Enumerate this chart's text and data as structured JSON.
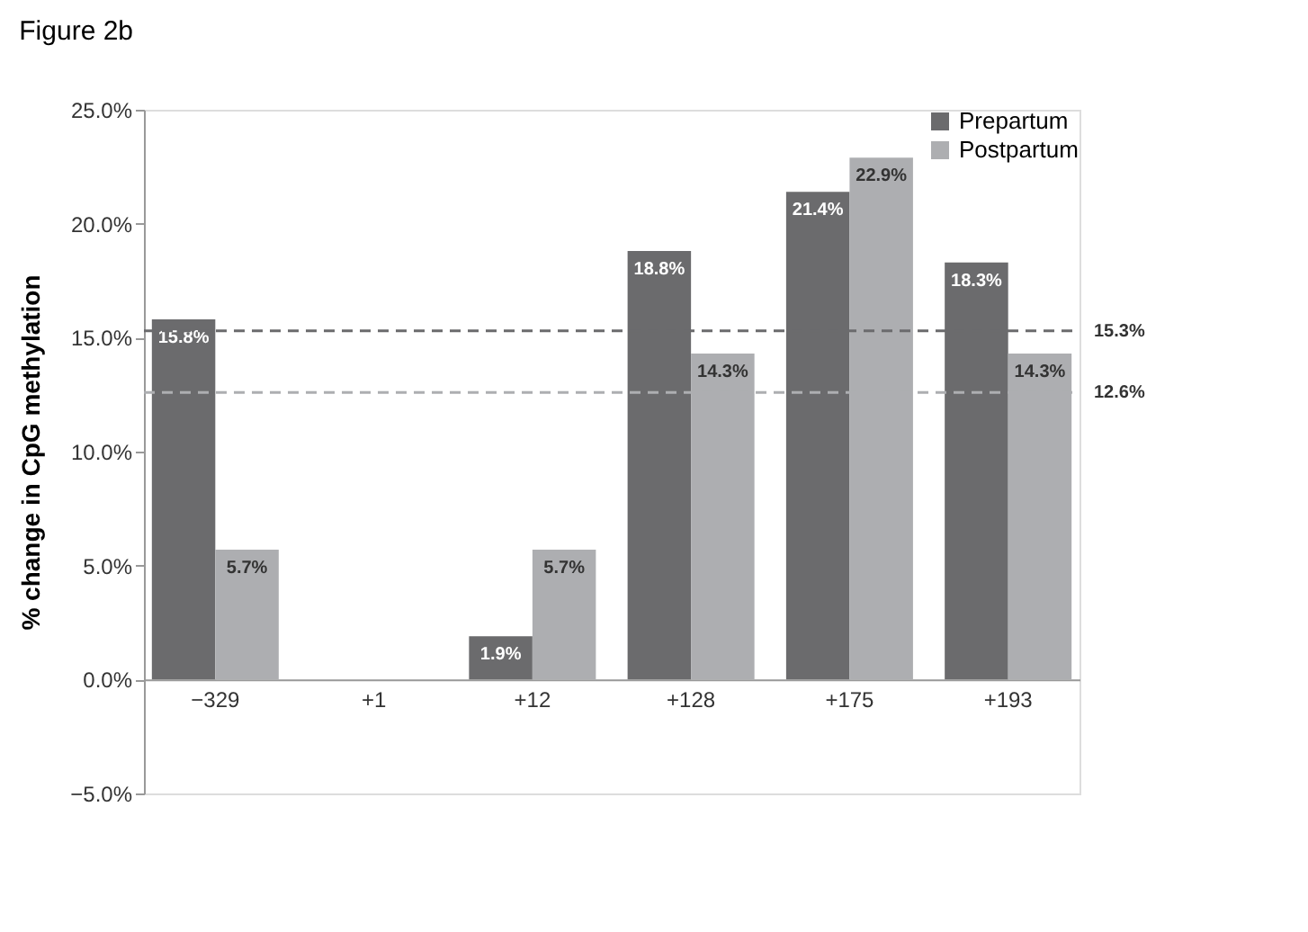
{
  "chart_data": {
    "type": "bar",
    "title": "Figure 2b",
    "ylabel": "% change in CpG methylation",
    "categories": [
      "−329",
      "+1",
      "+12",
      "+128",
      "+175",
      "+193"
    ],
    "series": [
      {
        "name": "Prepartum",
        "color": "#6b6b6d",
        "values": [
          15.8,
          null,
          1.9,
          18.8,
          21.4,
          18.3
        ],
        "value_labels": [
          "15.8%",
          null,
          "1.9%",
          "18.8%",
          "21.4%",
          "18.3%"
        ]
      },
      {
        "name": "Postpartum",
        "color": "#adaeb1",
        "values": [
          5.7,
          null,
          5.7,
          14.3,
          22.9,
          14.3
        ],
        "value_labels": [
          "5.7%",
          null,
          "5.7%",
          "14.3%",
          "22.9%",
          "14.3%"
        ]
      }
    ],
    "ylim": [
      -5,
      25
    ],
    "yticks": [
      {
        "value": -5,
        "label": "−5.0%"
      },
      {
        "value": 0,
        "label": "0.0%"
      },
      {
        "value": 5,
        "label": "5.0%"
      },
      {
        "value": 10,
        "label": "10.0%"
      },
      {
        "value": 15,
        "label": "15.0%"
      },
      {
        "value": 20,
        "label": "20.0%"
      },
      {
        "value": 25,
        "label": "25.0%"
      }
    ],
    "ref_lines": [
      {
        "axis": "y",
        "value": 15.3,
        "label": "15.3%",
        "color": "#6b6b6d",
        "line_style": "dashed"
      },
      {
        "axis": "y",
        "value": 12.6,
        "label": "12.6%",
        "color": "#adaeb1",
        "line_style": "dashed"
      }
    ],
    "legend": "top right",
    "grid": false
  }
}
